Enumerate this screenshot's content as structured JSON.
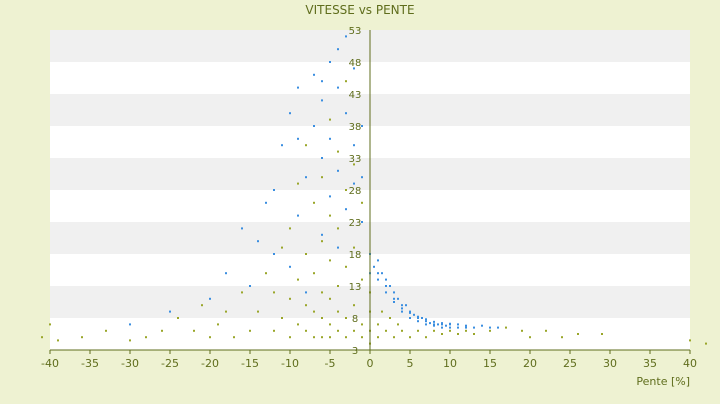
{
  "chart_data": {
    "type": "scatter",
    "title": "VITESSE vs PENTE",
    "xlabel": "Pente [%]",
    "ylabel": "",
    "xlim": [
      -40,
      40
    ],
    "ylim": [
      3,
      53
    ],
    "x_ticks": [
      "-40",
      "-35",
      "-30",
      "-25",
      "-20",
      "-15",
      "-10",
      "-5",
      "0",
      "5",
      "10",
      "15",
      "20",
      "25",
      "30",
      "35",
      "40"
    ],
    "y_ticks": [
      "3",
      "8",
      "13",
      "18",
      "23",
      "28",
      "33",
      "38",
      "43",
      "48",
      "53"
    ],
    "grid": true,
    "legend": "none",
    "colors": {
      "background": "#eef2d2",
      "plot_band_white": "#ffffff",
      "plot_band_grey": "#f0f0f0",
      "axis": "#5f6d1c",
      "text": "#5f6d1c",
      "series_1": "#3a8ee0",
      "series_2": "#9aa62a"
    },
    "series": [
      {
        "color": "#3a8ee0",
        "points": [
          [
            -30,
            7
          ],
          [
            -25,
            9
          ],
          [
            -20,
            11
          ],
          [
            -18,
            15
          ],
          [
            -15,
            13
          ],
          [
            -14,
            20
          ],
          [
            -12,
            28
          ],
          [
            -12,
            18
          ],
          [
            -11,
            35
          ],
          [
            -10,
            40
          ],
          [
            -10,
            16
          ],
          [
            -9,
            24
          ],
          [
            -9,
            44
          ],
          [
            -8,
            30
          ],
          [
            -8,
            12
          ],
          [
            -7,
            38
          ],
          [
            -7,
            46
          ],
          [
            -6,
            21
          ],
          [
            -6,
            42
          ],
          [
            -6,
            33
          ],
          [
            -5,
            48
          ],
          [
            -5,
            27
          ],
          [
            -5,
            36
          ],
          [
            -4,
            44
          ],
          [
            -4,
            31
          ],
          [
            -4,
            19
          ],
          [
            -3,
            40
          ],
          [
            -3,
            25
          ],
          [
            -3,
            52
          ],
          [
            -2,
            35
          ],
          [
            -2,
            29
          ],
          [
            -2,
            47
          ],
          [
            -1,
            38
          ],
          [
            -1,
            23
          ],
          [
            -1,
            30
          ],
          [
            0,
            18
          ],
          [
            0,
            15
          ],
          [
            0.5,
            16
          ],
          [
            1,
            17
          ],
          [
            1,
            14
          ],
          [
            1.5,
            15
          ],
          [
            2,
            14
          ],
          [
            2,
            12
          ],
          [
            2.5,
            13
          ],
          [
            3,
            12
          ],
          [
            3,
            11
          ],
          [
            3.5,
            11
          ],
          [
            4,
            10
          ],
          [
            4,
            9
          ],
          [
            4.5,
            10
          ],
          [
            5,
            9
          ],
          [
            5,
            8
          ],
          [
            5.5,
            8.5
          ],
          [
            6,
            8
          ],
          [
            6,
            7.5
          ],
          [
            6.5,
            8
          ],
          [
            7,
            7.5
          ],
          [
            7,
            7
          ],
          [
            7.5,
            7.2
          ],
          [
            8,
            7
          ],
          [
            8,
            6.8
          ],
          [
            8.5,
            7
          ],
          [
            9,
            7
          ],
          [
            9,
            6.5
          ],
          [
            9.5,
            6.8
          ],
          [
            10,
            6.5
          ],
          [
            10,
            7
          ],
          [
            11,
            6.5
          ],
          [
            11,
            7
          ],
          [
            12,
            6.5
          ],
          [
            12,
            6.8
          ],
          [
            13,
            6.5
          ],
          [
            14,
            6.8
          ],
          [
            15,
            6.5
          ],
          [
            16,
            6.5
          ],
          [
            3,
            10.5
          ],
          [
            4,
            9.5
          ],
          [
            5,
            8.8
          ],
          [
            6,
            8.2
          ],
          [
            7,
            7.8
          ],
          [
            8,
            7.4
          ],
          [
            9,
            7.2
          ],
          [
            10,
            7.1
          ],
          [
            2,
            13
          ],
          [
            1,
            15
          ],
          [
            -16,
            22
          ],
          [
            -13,
            26
          ],
          [
            -9,
            36
          ],
          [
            -6,
            45
          ],
          [
            -4,
            50
          ]
        ]
      },
      {
        "color": "#9aa62a",
        "points": [
          [
            -41,
            5
          ],
          [
            -40,
            7
          ],
          [
            -39,
            4.5
          ],
          [
            -36,
            5
          ],
          [
            -33,
            6
          ],
          [
            -30,
            4.5
          ],
          [
            -28,
            5
          ],
          [
            -26,
            6
          ],
          [
            -24,
            8
          ],
          [
            -22,
            6
          ],
          [
            -21,
            10
          ],
          [
            -20,
            5
          ],
          [
            -19,
            7
          ],
          [
            -18,
            9
          ],
          [
            -17,
            5
          ],
          [
            -16,
            12
          ],
          [
            -15,
            6
          ],
          [
            -14,
            9
          ],
          [
            -13,
            15
          ],
          [
            -12,
            6
          ],
          [
            -12,
            12
          ],
          [
            -11,
            8
          ],
          [
            -11,
            19
          ],
          [
            -10,
            5
          ],
          [
            -10,
            11
          ],
          [
            -10,
            22
          ],
          [
            -9,
            7
          ],
          [
            -9,
            14
          ],
          [
            -9,
            29
          ],
          [
            -8,
            6
          ],
          [
            -8,
            10
          ],
          [
            -8,
            18
          ],
          [
            -8,
            35
          ],
          [
            -7,
            5
          ],
          [
            -7,
            9
          ],
          [
            -7,
            15
          ],
          [
            -7,
            26
          ],
          [
            -6,
            5
          ],
          [
            -6,
            8
          ],
          [
            -6,
            12
          ],
          [
            -6,
            20
          ],
          [
            -6,
            30
          ],
          [
            -5,
            5
          ],
          [
            -5,
            7
          ],
          [
            -5,
            11
          ],
          [
            -5,
            17
          ],
          [
            -5,
            24
          ],
          [
            -5,
            39
          ],
          [
            -4,
            6
          ],
          [
            -4,
            9
          ],
          [
            -4,
            13
          ],
          [
            -4,
            22
          ],
          [
            -4,
            34
          ],
          [
            -3,
            5
          ],
          [
            -3,
            8
          ],
          [
            -3,
            16
          ],
          [
            -3,
            28
          ],
          [
            -3,
            45
          ],
          [
            -2,
            6
          ],
          [
            -2,
            10
          ],
          [
            -2,
            19
          ],
          [
            -2,
            32
          ],
          [
            -1,
            5
          ],
          [
            -1,
            7
          ],
          [
            -1,
            14
          ],
          [
            -1,
            26
          ],
          [
            0,
            4
          ],
          [
            0,
            6
          ],
          [
            0,
            9
          ],
          [
            0,
            12
          ],
          [
            1,
            5
          ],
          [
            1,
            7
          ],
          [
            1.5,
            9
          ],
          [
            2,
            6
          ],
          [
            2.5,
            8
          ],
          [
            3,
            5
          ],
          [
            3.5,
            7
          ],
          [
            4,
            6
          ],
          [
            5,
            5
          ],
          [
            6,
            6
          ],
          [
            7,
            5
          ],
          [
            8,
            6
          ],
          [
            9,
            5.5
          ],
          [
            10,
            6
          ],
          [
            11,
            5.5
          ],
          [
            12,
            6
          ],
          [
            13,
            5.5
          ],
          [
            15,
            6
          ],
          [
            17,
            6.5
          ],
          [
            19,
            6
          ],
          [
            20,
            5
          ],
          [
            22,
            6
          ],
          [
            24,
            5
          ],
          [
            26,
            5.5
          ],
          [
            29,
            5.5
          ],
          [
            40,
            4.5
          ],
          [
            42,
            4
          ]
        ]
      }
    ]
  }
}
